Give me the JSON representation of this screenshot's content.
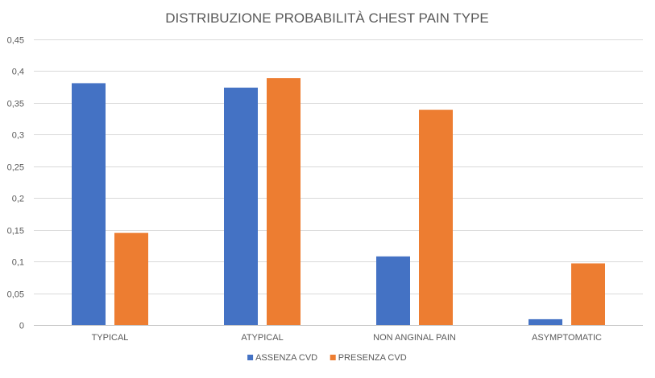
{
  "chart_data": {
    "type": "bar",
    "title": "DISTRIBUZIONE PROBABILITÀ CHEST PAIN TYPE",
    "xlabel": "",
    "ylabel": "",
    "categories": [
      "TYPICAL",
      "ATYPICAL",
      "NON ANGINAL PAIN",
      "ASYMPTOMATIC"
    ],
    "series": [
      {
        "name": "ASSENZA CVD",
        "color": "#4472C4",
        "values": [
          0.381,
          0.374,
          0.108,
          0.009
        ]
      },
      {
        "name": "PRESENZA CVD",
        "color": "#ED7D31",
        "values": [
          0.145,
          0.389,
          0.339,
          0.097
        ]
      }
    ],
    "ylim": [
      0,
      0.45
    ],
    "yticks": [
      {
        "value": 0,
        "label": "0"
      },
      {
        "value": 0.05,
        "label": "0,05"
      },
      {
        "value": 0.1,
        "label": "0,1"
      },
      {
        "value": 0.15,
        "label": "0,15"
      },
      {
        "value": 0.2,
        "label": "0,2"
      },
      {
        "value": 0.25,
        "label": "0,25"
      },
      {
        "value": 0.3,
        "label": "0,3"
      },
      {
        "value": 0.35,
        "label": "0,35"
      },
      {
        "value": 0.4,
        "label": "0,4"
      },
      {
        "value": 0.45,
        "label": "0,45"
      }
    ],
    "grid": true,
    "legend_position": "bottom"
  }
}
